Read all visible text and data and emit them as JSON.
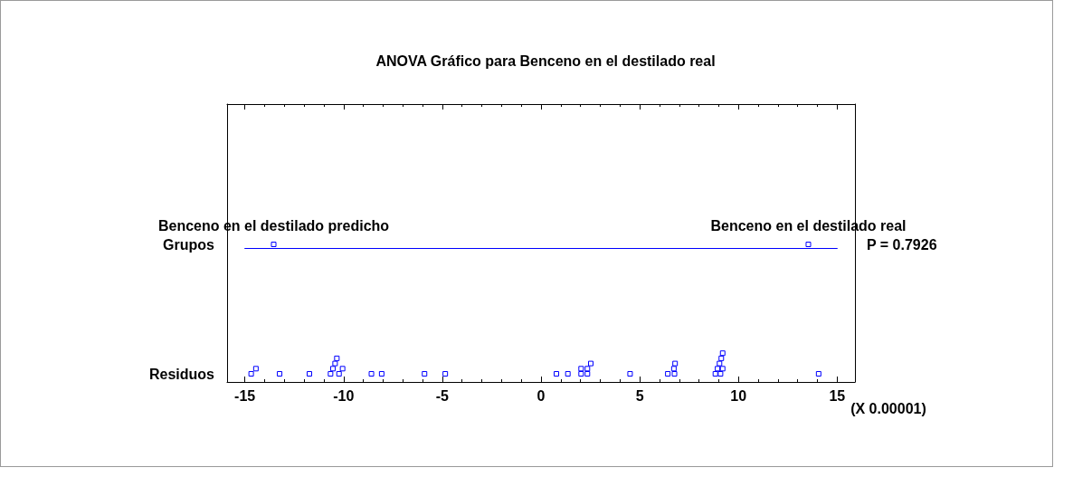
{
  "chart_data": {
    "type": "scatter",
    "title": "ANOVA Gráfico para Benceno en el destilado real",
    "xlabel": "(X 0.00001)",
    "orientation": "horizontal",
    "categories": [
      "Grupos",
      "Residuos"
    ],
    "series": [
      {
        "color": "#0000ff",
        "x": [
          "Grupos",
          "Grupos"
        ],
        "values": [
          -13.54,
          13.54
        ]
      },
      {
        "color": "#0000ff",
        "x": [
          "Residuos",
          "Residuos",
          "Residuos",
          "Residuos",
          "Residuos",
          "Residuos",
          "Residuos",
          "Residuos",
          "Residuos",
          "Residuos",
          "Residuos",
          "Residuos",
          "Residuos",
          "Residuos",
          "Residuos",
          "Residuos",
          "Residuos",
          "Residuos",
          "Residuos",
          "Residuos",
          "Residuos",
          "Residuos",
          "Residuos",
          "Residuos",
          "Residuos",
          "Residuos",
          "Residuos",
          "Residuos",
          "Residuos",
          "Residuos",
          "Residuos",
          "Residuos",
          "Residuos",
          "Residuos"
        ],
        "values": [
          -14.68,
          -14.44,
          -13.24,
          -11.73,
          -10.66,
          -10.23,
          -10.54,
          -10.05,
          -10.43,
          -10.34,
          -8.59,
          -8.07,
          -5.9,
          -4.85,
          0.78,
          1.36,
          2.03,
          2.35,
          2.03,
          2.35,
          2.52,
          4.51,
          6.42,
          6.76,
          6.73,
          6.79,
          8.83,
          9.09,
          8.94,
          9.2,
          9.04,
          9.13,
          9.2,
          14.06
        ]
      }
    ],
    "xlim": [
      -15.9,
      15.9
    ],
    "xticks": [
      -15,
      {
        "value": -14,
        "label": null
      },
      {
        "value": -13,
        "label": null
      },
      {
        "value": -12,
        "label": null
      },
      {
        "value": -11,
        "label": null
      },
      -10,
      {
        "value": -9,
        "label": null
      },
      {
        "value": -8,
        "label": null
      },
      {
        "value": -7,
        "label": null
      },
      {
        "value": -6,
        "label": null
      },
      -5,
      {
        "value": -4,
        "label": null
      },
      {
        "value": -3,
        "label": null
      },
      {
        "value": -2,
        "label": null
      },
      {
        "value": -1,
        "label": null
      },
      0,
      {
        "value": 1,
        "label": null
      },
      {
        "value": 2,
        "label": null
      },
      {
        "value": 3,
        "label": null
      },
      {
        "value": 4,
        "label": null
      },
      5,
      {
        "value": 6,
        "label": null
      },
      {
        "value": 7,
        "label": null
      },
      {
        "value": 8,
        "label": null
      },
      {
        "value": 9,
        "label": null
      },
      10,
      {
        "value": 11,
        "label": null
      },
      {
        "value": 12,
        "label": null
      },
      {
        "value": 13,
        "label": null
      },
      {
        "value": 14,
        "label": null
      },
      15
    ],
    "marker": "square",
    "ref_lines": [
      {
        "axis": "y",
        "value": "Grupos",
        "color": "#0000ff"
      }
    ],
    "annotations": [
      {
        "text": "Benceno en el destilado predicho",
        "x": -13.54,
        "y": "Grupos"
      },
      {
        "text": "Benceno en el destilado real",
        "x": 13.54,
        "y": "Grupos"
      },
      "P = 0.7926"
    ]
  }
}
